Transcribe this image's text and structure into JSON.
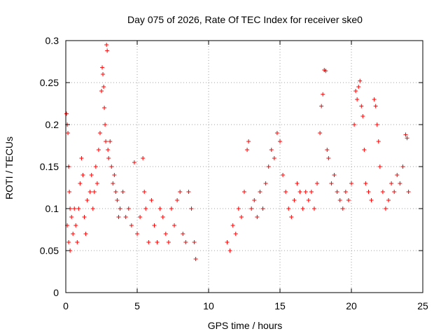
{
  "chart_data": {
    "type": "scatter",
    "title": "Day 075 of 2026, Rate Of TEC Index for receiver ske0",
    "xlabel": "GPS time / hours",
    "ylabel": "ROTI / TECUs",
    "xlim": [
      0,
      25
    ],
    "ylim": [
      0,
      0.3
    ],
    "x_ticks": [
      0,
      5,
      10,
      15,
      20,
      25
    ],
    "x_tick_labels": [
      "0",
      "5",
      "10",
      "15",
      "20",
      "25"
    ],
    "y_ticks": [
      0,
      0.05,
      0.1,
      0.15,
      0.2,
      0.25,
      0.3
    ],
    "y_tick_labels": [
      "0",
      "0.05",
      "0.1",
      "0.15",
      "0.2",
      "0.25",
      "0.3"
    ],
    "grid": true,
    "marker": "+",
    "color": "#ff0000",
    "series": [
      {
        "points": [
          [
            0.05,
            0.213
          ],
          [
            0.1,
            0.2
          ],
          [
            0.15,
            0.19
          ],
          [
            0.2,
            0.15
          ],
          [
            0.25,
            0.12
          ],
          [
            0.3,
            0.1
          ],
          [
            0.1,
            0.08
          ],
          [
            0.2,
            0.06
          ],
          [
            0.3,
            0.05
          ],
          [
            0.4,
            0.09
          ],
          [
            0.5,
            0.07
          ],
          [
            0.6,
            0.1
          ],
          [
            0.7,
            0.08
          ],
          [
            0.8,
            0.06
          ],
          [
            0.9,
            0.1
          ],
          [
            1.0,
            0.13
          ],
          [
            1.1,
            0.16
          ],
          [
            1.2,
            0.14
          ],
          [
            1.3,
            0.09
          ],
          [
            1.4,
            0.07
          ],
          [
            1.5,
            0.11
          ],
          [
            1.7,
            0.12
          ],
          [
            1.8,
            0.14
          ],
          [
            1.9,
            0.1
          ],
          [
            2.0,
            0.12
          ],
          [
            2.1,
            0.15
          ],
          [
            2.2,
            0.13
          ],
          [
            2.3,
            0.17
          ],
          [
            2.4,
            0.19
          ],
          [
            2.5,
            0.24
          ],
          [
            2.55,
            0.268
          ],
          [
            2.6,
            0.26
          ],
          [
            2.65,
            0.245
          ],
          [
            2.7,
            0.22
          ],
          [
            2.75,
            0.2
          ],
          [
            2.8,
            0.18
          ],
          [
            2.85,
            0.295
          ],
          [
            2.9,
            0.288
          ],
          [
            2.95,
            0.17
          ],
          [
            3.0,
            0.16
          ],
          [
            3.1,
            0.18
          ],
          [
            3.2,
            0.15
          ],
          [
            3.3,
            0.13
          ],
          [
            3.4,
            0.14
          ],
          [
            3.5,
            0.12
          ],
          [
            3.6,
            0.11
          ],
          [
            3.7,
            0.09
          ],
          [
            3.8,
            0.1
          ],
          [
            4.0,
            0.12
          ],
          [
            4.2,
            0.09
          ],
          [
            4.4,
            0.1
          ],
          [
            4.6,
            0.08
          ],
          [
            4.8,
            0.155
          ],
          [
            5.0,
            0.07
          ],
          [
            5.2,
            0.09
          ],
          [
            5.4,
            0.16
          ],
          [
            5.5,
            0.12
          ],
          [
            5.6,
            0.1
          ],
          [
            5.8,
            0.06
          ],
          [
            6.0,
            0.11
          ],
          [
            6.2,
            0.08
          ],
          [
            6.4,
            0.06
          ],
          [
            6.6,
            0.1
          ],
          [
            6.8,
            0.09
          ],
          [
            7.0,
            0.07
          ],
          [
            7.2,
            0.06
          ],
          [
            7.4,
            0.1
          ],
          [
            7.6,
            0.08
          ],
          [
            7.8,
            0.11
          ],
          [
            8.0,
            0.12
          ],
          [
            8.2,
            0.07
          ],
          [
            8.4,
            0.06
          ],
          [
            8.6,
            0.12
          ],
          [
            8.8,
            0.1
          ],
          [
            9.0,
            0.06
          ],
          [
            9.1,
            0.04
          ],
          [
            11.3,
            0.06
          ],
          [
            11.5,
            0.05
          ],
          [
            11.7,
            0.08
          ],
          [
            11.9,
            0.07
          ],
          [
            12.1,
            0.1
          ],
          [
            12.3,
            0.09
          ],
          [
            12.5,
            0.12
          ],
          [
            12.7,
            0.17
          ],
          [
            12.8,
            0.18
          ],
          [
            13.0,
            0.1
          ],
          [
            13.2,
            0.11
          ],
          [
            13.4,
            0.09
          ],
          [
            13.6,
            0.12
          ],
          [
            13.8,
            0.1
          ],
          [
            14.0,
            0.13
          ],
          [
            14.2,
            0.15
          ],
          [
            14.4,
            0.17
          ],
          [
            14.6,
            0.16
          ],
          [
            14.8,
            0.19
          ],
          [
            15.0,
            0.18
          ],
          [
            15.2,
            0.14
          ],
          [
            15.4,
            0.12
          ],
          [
            15.6,
            0.1
          ],
          [
            15.8,
            0.09
          ],
          [
            16.0,
            0.11
          ],
          [
            16.2,
            0.13
          ],
          [
            16.4,
            0.12
          ],
          [
            16.6,
            0.1
          ],
          [
            16.8,
            0.12
          ],
          [
            17.0,
            0.11
          ],
          [
            17.2,
            0.12
          ],
          [
            17.4,
            0.1
          ],
          [
            17.6,
            0.13
          ],
          [
            17.8,
            0.19
          ],
          [
            17.9,
            0.222
          ],
          [
            18.0,
            0.236
          ],
          [
            18.1,
            0.265
          ],
          [
            18.2,
            0.264
          ],
          [
            18.3,
            0.17
          ],
          [
            18.4,
            0.16
          ],
          [
            18.6,
            0.13
          ],
          [
            18.8,
            0.14
          ],
          [
            19.0,
            0.12
          ],
          [
            19.2,
            0.11
          ],
          [
            19.4,
            0.1
          ],
          [
            19.6,
            0.12
          ],
          [
            19.8,
            0.11
          ],
          [
            20.0,
            0.13
          ],
          [
            20.2,
            0.2
          ],
          [
            20.3,
            0.24
          ],
          [
            20.4,
            0.23
          ],
          [
            20.5,
            0.245
          ],
          [
            20.6,
            0.252
          ],
          [
            20.7,
            0.222
          ],
          [
            20.8,
            0.21
          ],
          [
            20.9,
            0.17
          ],
          [
            21.0,
            0.13
          ],
          [
            21.2,
            0.12
          ],
          [
            21.4,
            0.11
          ],
          [
            21.6,
            0.23
          ],
          [
            21.7,
            0.222
          ],
          [
            21.8,
            0.2
          ],
          [
            21.9,
            0.18
          ],
          [
            22.0,
            0.15
          ],
          [
            22.2,
            0.12
          ],
          [
            22.4,
            0.1
          ],
          [
            22.6,
            0.11
          ],
          [
            22.8,
            0.13
          ],
          [
            23.0,
            0.12
          ],
          [
            23.2,
            0.14
          ],
          [
            23.4,
            0.13
          ],
          [
            23.6,
            0.15
          ],
          [
            23.8,
            0.188
          ],
          [
            23.9,
            0.184
          ],
          [
            24.0,
            0.12
          ]
        ]
      }
    ]
  }
}
